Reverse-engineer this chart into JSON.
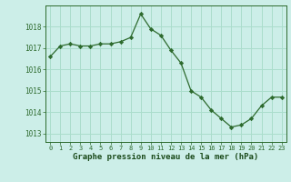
{
  "x": [
    0,
    1,
    2,
    3,
    4,
    5,
    6,
    7,
    8,
    9,
    10,
    11,
    12,
    13,
    14,
    15,
    16,
    17,
    18,
    19,
    20,
    21,
    22,
    23
  ],
  "y": [
    1016.6,
    1017.1,
    1017.2,
    1017.1,
    1017.1,
    1017.2,
    1017.2,
    1017.3,
    1017.5,
    1018.6,
    1017.9,
    1017.6,
    1016.9,
    1016.3,
    1015.0,
    1014.7,
    1014.1,
    1013.7,
    1013.3,
    1013.4,
    1013.7,
    1014.3,
    1014.7,
    1014.7
  ],
  "line_color": "#2d6a2d",
  "marker": "D",
  "marker_size": 2.2,
  "bg_color": "#cceee8",
  "grid_color": "#aaddcc",
  "xlabel": "Graphe pression niveau de la mer (hPa)",
  "xlabel_color": "#1a4a1a",
  "ylabel_ticks": [
    1013,
    1014,
    1015,
    1016,
    1017,
    1018
  ],
  "ylim": [
    1012.6,
    1019.0
  ],
  "xlim": [
    -0.5,
    23.5
  ],
  "tick_color": "#2d6a2d",
  "spine_color": "#2d6a2d",
  "figsize": [
    3.2,
    2.0
  ],
  "dpi": 100
}
